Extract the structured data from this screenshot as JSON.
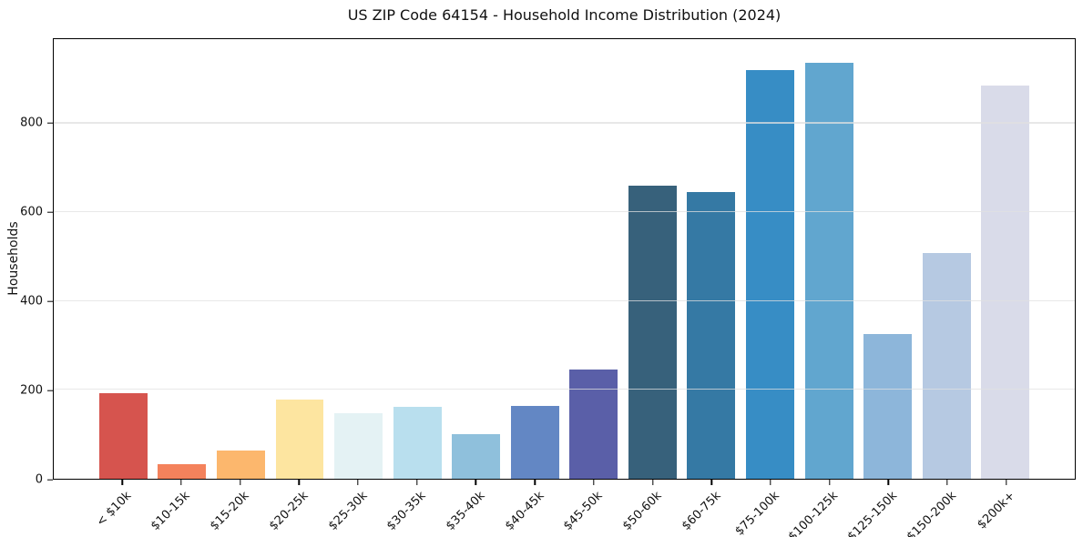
{
  "chart_data": {
    "type": "bar",
    "title": "US ZIP Code 64154 - Household Income Distribution (2024)",
    "xlabel": "",
    "ylabel": "Households",
    "ylim": [
      0,
      990
    ],
    "yticks": [
      0,
      200,
      400,
      600,
      800
    ],
    "grid": "horizontal",
    "legend": "none",
    "background_color": "#ffffff",
    "spine_color": "#000000",
    "gridline_color": "#e8e8e8",
    "categories": [
      "< $10k",
      "$10-15k",
      "$15-20k",
      "$20-25k",
      "$25-30k",
      "$30-35k",
      "$35-40k",
      "$40-45k",
      "$45-50k",
      "$50-60k",
      "$60-75k",
      "$75-100k",
      "$100-125k",
      "$125-150k",
      "$150-200k",
      "$200k+"
    ],
    "values": [
      192,
      32,
      63,
      178,
      147,
      161,
      100,
      164,
      245,
      660,
      645,
      920,
      936,
      326,
      508,
      886
    ],
    "bar_colors": [
      "#d6544e",
      "#f4825c",
      "#fcb76d",
      "#fde5a0",
      "#e4f2f4",
      "#b9dfee",
      "#8fc0dc",
      "#6387c4",
      "#5a5fa8",
      "#37617b",
      "#3579a4",
      "#378dc5",
      "#61a6cf",
      "#8db6da",
      "#b6c9e2",
      "#d9dbe9"
    ]
  }
}
